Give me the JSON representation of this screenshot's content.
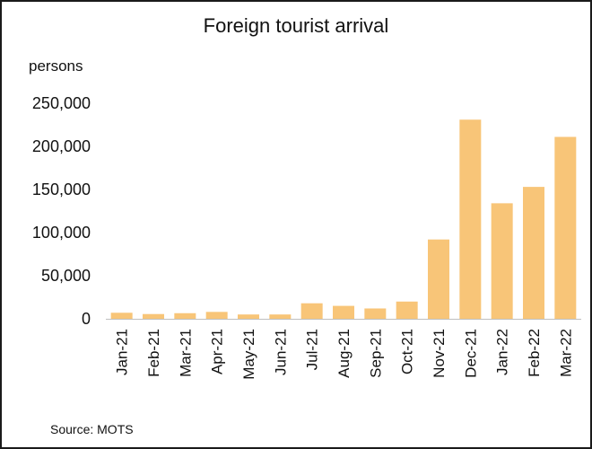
{
  "chart_data": {
    "type": "bar",
    "title": "Foreign tourist arrival",
    "ylabel": "persons",
    "xlabel": "",
    "source": "Source: MOTS",
    "categories": [
      "Jan-21",
      "Feb-21",
      "Mar-21",
      "Apr-21",
      "May-21",
      "Jun-21",
      "Jul-21",
      "Aug-21",
      "Sep-21",
      "Oct-21",
      "Nov-21",
      "Dec-21",
      "Jan-22",
      "Feb-22",
      "Mar-22"
    ],
    "values": [
      7000,
      5500,
      6500,
      8000,
      5000,
      5000,
      18000,
      15000,
      12000,
      20000,
      92000,
      231000,
      134000,
      153000,
      211000
    ],
    "ylim": [
      0,
      250000
    ],
    "yticks": [
      0,
      50000,
      100000,
      150000,
      200000,
      250000
    ],
    "ytick_labels": [
      "0",
      "50,000",
      "100,000",
      "150,000",
      "200,000",
      "250,000"
    ],
    "grid": false,
    "legend": "none",
    "bar_color": "#f8c578"
  }
}
